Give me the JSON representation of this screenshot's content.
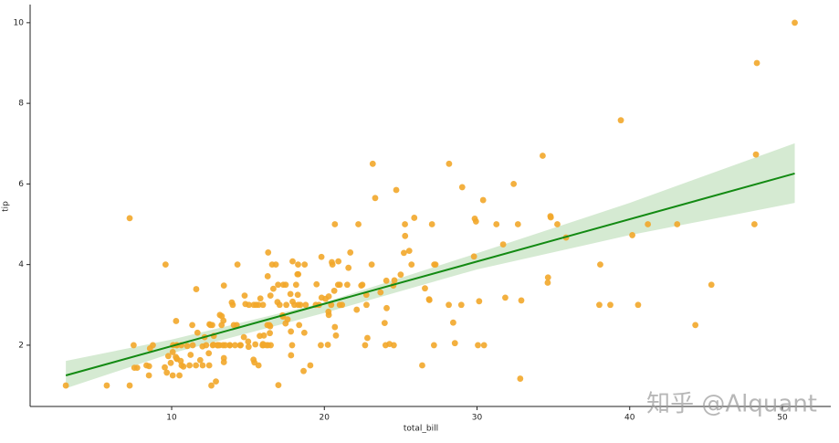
{
  "chart_data": {
    "type": "regplot",
    "xlabel": "total_bill",
    "ylabel": "tip",
    "xlim": [
      0.73,
      53.17
    ],
    "ylim": [
      0.48,
      10.45
    ],
    "xticks": [
      10,
      20,
      30,
      40,
      50
    ],
    "yticks": [
      2,
      4,
      6,
      8,
      10
    ],
    "annotation": "知乎 @Alquant",
    "scatter": {
      "color": "#f2a72a",
      "x": [
        16.99,
        10.34,
        21.01,
        23.68,
        24.59,
        25.29,
        8.77,
        26.88,
        15.04,
        14.78,
        10.27,
        35.26,
        15.42,
        18.43,
        14.83,
        21.58,
        10.33,
        16.29,
        16.97,
        20.65,
        17.92,
        20.29,
        15.77,
        39.42,
        19.82,
        17.81,
        13.37,
        12.69,
        21.7,
        19.65,
        9.55,
        18.35,
        15.06,
        20.69,
        17.78,
        24.06,
        16.31,
        16.93,
        18.69,
        31.27,
        16.04,
        17.46,
        13.94,
        9.68,
        30.4,
        18.29,
        22.23,
        32.4,
        28.55,
        18.04,
        12.54,
        10.29,
        34.81,
        9.94,
        25.56,
        19.49,
        38.01,
        26.41,
        11.24,
        48.27,
        20.29,
        13.81,
        11.02,
        18.29,
        17.59,
        20.08,
        16.45,
        3.07,
        20.23,
        15.01,
        12.02,
        17.07,
        26.86,
        25.28,
        14.73,
        10.51,
        17.92,
        27.2,
        22.76,
        17.29,
        19.44,
        16.66,
        10.07,
        32.68,
        15.98,
        34.83,
        13.03,
        18.28,
        24.71,
        21.16,
        28.97,
        22.49,
        5.75,
        16.32,
        22.75,
        40.17,
        27.28,
        12.03,
        21.01,
        12.46,
        11.35,
        15.38,
        44.3,
        22.42,
        20.92,
        15.36,
        20.49,
        25.21,
        18.24,
        14.31,
        14.0,
        7.25,
        38.07,
        23.95,
        25.71,
        17.31,
        29.93,
        10.65,
        12.43,
        24.08,
        11.69,
        13.42,
        14.26,
        15.95,
        12.48,
        29.8,
        8.52,
        14.52,
        11.38,
        22.82,
        19.08,
        20.27,
        11.17,
        12.26,
        18.26,
        8.51,
        10.33,
        14.15,
        16.0,
        13.16,
        17.47,
        34.3,
        41.19,
        27.05,
        16.43,
        8.35,
        18.64,
        11.87,
        9.78,
        7.51,
        14.07,
        13.13,
        17.26,
        24.55,
        19.77,
        29.85,
        48.17,
        25.0,
        13.39,
        16.49,
        21.5,
        12.66,
        16.21,
        13.81,
        17.51,
        24.52,
        20.76,
        31.71,
        10.59,
        10.63,
        50.81,
        15.81,
        7.25,
        31.85,
        16.82,
        32.9,
        17.89,
        14.48,
        9.6,
        34.63,
        34.65,
        23.33,
        45.35,
        23.17,
        40.55,
        20.69,
        20.9,
        30.46,
        18.15,
        23.1,
        15.69,
        19.81,
        28.44,
        15.48,
        16.58,
        7.56,
        10.34,
        43.11,
        13.0,
        13.51,
        18.71,
        12.74,
        13.0,
        16.4,
        20.53,
        16.47,
        26.59,
        38.73,
        24.27,
        12.76,
        30.06,
        25.89,
        48.33,
        13.27,
        28.17,
        12.9,
        28.15,
        11.59,
        7.74,
        30.14,
        12.16,
        13.42,
        8.58,
        15.98,
        13.42,
        16.27,
        10.09,
        20.45,
        13.28,
        22.12,
        24.01,
        15.69,
        11.61,
        10.77,
        15.53,
        10.07,
        12.6,
        32.83,
        35.83,
        29.03,
        27.18,
        22.67,
        17.82,
        18.78
      ],
      "values": [
        1.01,
        1.66,
        3.5,
        3.31,
        3.61,
        4.71,
        2.0,
        3.12,
        1.96,
        3.23,
        1.71,
        5.0,
        1.57,
        3.0,
        3.02,
        3.92,
        1.67,
        3.71,
        3.5,
        3.35,
        4.08,
        2.75,
        2.23,
        7.58,
        3.18,
        2.34,
        2.0,
        2.0,
        4.3,
        3.0,
        1.45,
        2.5,
        3.0,
        2.45,
        3.27,
        3.6,
        2.0,
        3.07,
        2.31,
        5.0,
        2.24,
        2.54,
        3.06,
        1.32,
        5.6,
        3.0,
        5.0,
        6.0,
        2.05,
        3.0,
        2.5,
        2.6,
        5.2,
        1.56,
        4.34,
        3.51,
        3.0,
        1.5,
        1.76,
        6.73,
        3.21,
        2.0,
        1.98,
        3.76,
        2.64,
        3.15,
        2.47,
        1.0,
        2.01,
        2.09,
        1.97,
        3.0,
        3.14,
        5.0,
        2.2,
        1.25,
        3.08,
        4.0,
        3.0,
        2.71,
        3.0,
        3.4,
        1.83,
        5.0,
        2.03,
        5.17,
        2.0,
        4.0,
        5.85,
        3.0,
        3.0,
        3.5,
        1.0,
        4.3,
        3.25,
        4.73,
        4.0,
        1.5,
        3.0,
        1.5,
        2.5,
        3.0,
        2.5,
        3.48,
        4.08,
        1.64,
        4.06,
        4.29,
        3.76,
        4.0,
        3.0,
        1.0,
        4.0,
        2.55,
        4.0,
        3.5,
        5.07,
        1.5,
        1.8,
        2.92,
        2.31,
        1.68,
        2.5,
        2.0,
        2.52,
        4.2,
        1.48,
        2.0,
        2.0,
        2.18,
        1.5,
        2.83,
        1.5,
        2.0,
        3.25,
        1.25,
        2.0,
        2.0,
        2.0,
        2.75,
        3.5,
        6.7,
        5.0,
        5.0,
        2.3,
        1.5,
        1.36,
        1.63,
        1.73,
        2.0,
        2.5,
        2.0,
        2.74,
        2.0,
        2.0,
        5.14,
        5.0,
        3.75,
        2.61,
        2.0,
        3.5,
        2.5,
        2.0,
        2.0,
        3.0,
        3.48,
        2.24,
        4.5,
        1.61,
        2.0,
        10.0,
        3.16,
        5.15,
        3.18,
        4.0,
        3.11,
        2.0,
        2.0,
        4.0,
        3.55,
        3.68,
        5.65,
        3.5,
        6.5,
        3.0,
        5.0,
        3.5,
        2.0,
        3.5,
        4.0,
        1.5,
        4.19,
        2.56,
        2.02,
        4.0,
        1.44,
        2.0,
        5.0,
        2.0,
        2.0,
        4.0,
        2.01,
        2.0,
        2.5,
        4.0,
        3.23,
        3.41,
        3.0,
        2.03,
        2.23,
        2.0,
        5.16,
        9.0,
        2.5,
        6.5,
        1.1,
        3.0,
        1.5,
        1.44,
        3.09,
        2.2,
        3.48,
        1.92,
        3.0,
        1.58,
        2.5,
        2.0,
        3.0,
        2.72,
        2.88,
        2.0,
        3.0,
        3.39,
        1.47,
        3.0,
        1.25,
        1.0,
        1.17,
        4.67,
        5.92,
        2.0,
        2.0,
        1.75,
        3.0
      ]
    },
    "fit": {
      "color": "#138a13",
      "x": [
        3.07,
        50.81
      ],
      "values": [
        1.25,
        6.26
      ]
    },
    "band": {
      "color": "#d5ead2",
      "x": [
        3.07,
        10,
        20,
        30,
        40,
        50.81
      ],
      "lower": [
        0.93,
        1.8,
        2.8,
        3.88,
        4.73,
        5.53
      ],
      "upper": [
        1.61,
        2.14,
        3.06,
        4.28,
        5.53,
        7.01
      ]
    }
  }
}
